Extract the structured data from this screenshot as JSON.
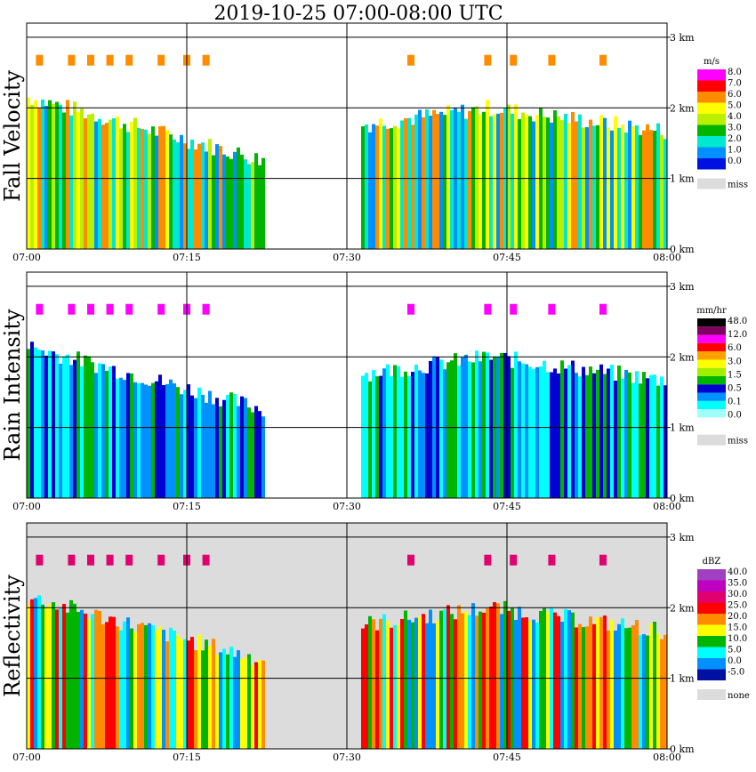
{
  "chart_data": {
    "type": "heatmap",
    "title": "2019-10-25   07:00-08:00 UTC",
    "x_ticks": [
      "07:00",
      "07:15",
      "07:30",
      "07:45",
      "08:00"
    ],
    "y_ticks": [
      "0 km",
      "1 km",
      "2 km",
      "3 km"
    ],
    "ylim_km": [
      0,
      3.2
    ],
    "grid": true,
    "panels": [
      {
        "name": "Fall Velocity",
        "unit": "m/s",
        "legend_labels": [
          "8.0",
          "7.0",
          "6.0",
          "5.0",
          "4.0",
          "3.0",
          "2.0",
          "1.0",
          "0.0",
          "miss"
        ],
        "legend_colors": [
          "#ff00ff",
          "#ff0000",
          "#ff8c00",
          "#ffff00",
          "#b8f000",
          "#00b400",
          "#00e8d0",
          "#0090ff",
          "#0010e0",
          "#dcdcdc"
        ],
        "background": "#ffffff"
      },
      {
        "name": "Rain Intensity",
        "unit": "mm/hr",
        "legend_labels": [
          "48.0",
          "12.0",
          "6.0",
          "3.0",
          "1.5",
          "0.5",
          "0.1",
          "0.0",
          "miss"
        ],
        "legend_colors": [
          "#000000",
          "#800060",
          "#ff00ff",
          "#ff0000",
          "#ffa000",
          "#ffff00",
          "#a0f000",
          "#00b400",
          "#0000d0",
          "#0090ff",
          "#00ffff",
          "#a0ffff",
          "#ffffff",
          "#dcdcdc"
        ],
        "background": "#ffffff"
      },
      {
        "name": "Reflectivity",
        "unit": "dBZ",
        "legend_labels": [
          "40.0",
          "35.0",
          "30.0",
          "25.0",
          "20.0",
          "15.0",
          "10.0",
          "5.0",
          "0.0",
          "-5.0",
          "none"
        ],
        "legend_colors": [
          "#a040c0",
          "#c000c0",
          "#e00070",
          "#ff0000",
          "#ff8c00",
          "#ffff00",
          "#00b400",
          "#00ffff",
          "#0090ff",
          "#0010a0",
          "#dcdcdc"
        ],
        "background": "#dcdcdc"
      }
    ]
  }
}
